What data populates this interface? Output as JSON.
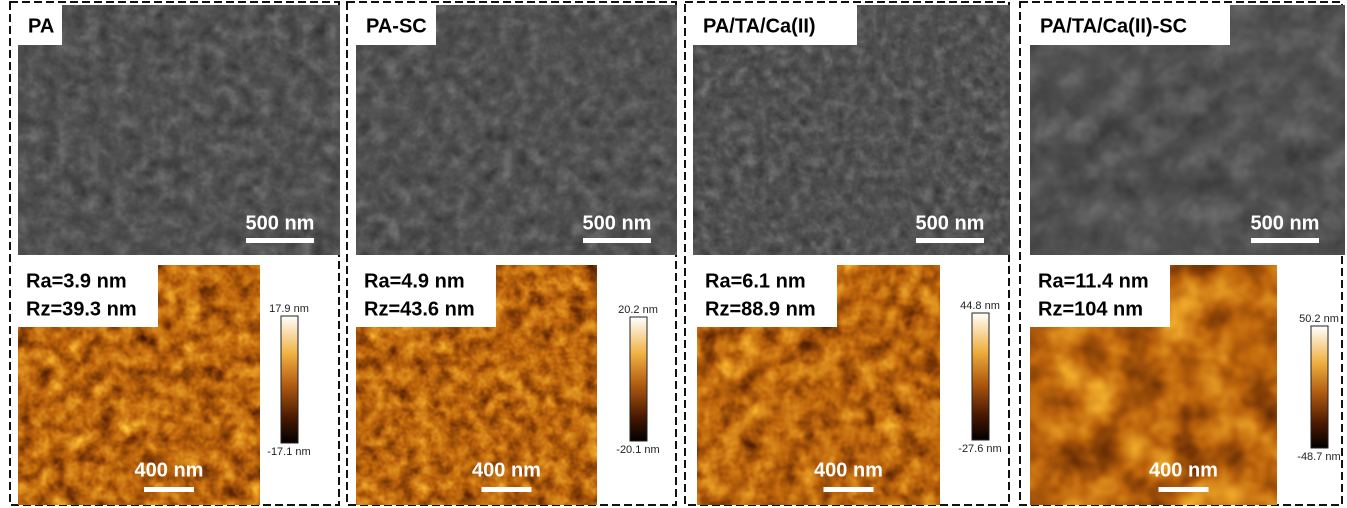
{
  "panels": [
    {
      "title": "PA",
      "sem": {
        "scale_bar": "500 nm"
      },
      "afm": {
        "ra": "Ra=3.9 nm",
        "rz": "Rz=39.3 nm",
        "scale_bar": "400 nm",
        "colorbar_max": "17.9 nm",
        "colorbar_min": "-17.1 nm"
      }
    },
    {
      "title": "PA-SC",
      "sem": {
        "scale_bar": "500 nm"
      },
      "afm": {
        "ra": "Ra=4.9 nm",
        "rz": "Rz=43.6 nm",
        "scale_bar": "400 nm",
        "colorbar_max": "20.2 nm",
        "colorbar_min": "-20.1 nm"
      }
    },
    {
      "title": "PA/TA/Ca(II)",
      "sem": {
        "scale_bar": "500 nm"
      },
      "afm": {
        "ra": "Ra=6.1 nm",
        "rz": "Rz=88.9 nm",
        "scale_bar": "400 nm",
        "colorbar_max": "44.8 nm",
        "colorbar_min": "-27.6 nm"
      }
    },
    {
      "title": "PA/TA/Ca(II)-SC",
      "sem": {
        "scale_bar": "500 nm"
      },
      "afm": {
        "ra": "Ra=11.4 nm",
        "rz": "Rz=104 nm",
        "scale_bar": "400 nm",
        "colorbar_max": "50.2 nm",
        "colorbar_min": "-48.7 nm"
      }
    }
  ]
}
